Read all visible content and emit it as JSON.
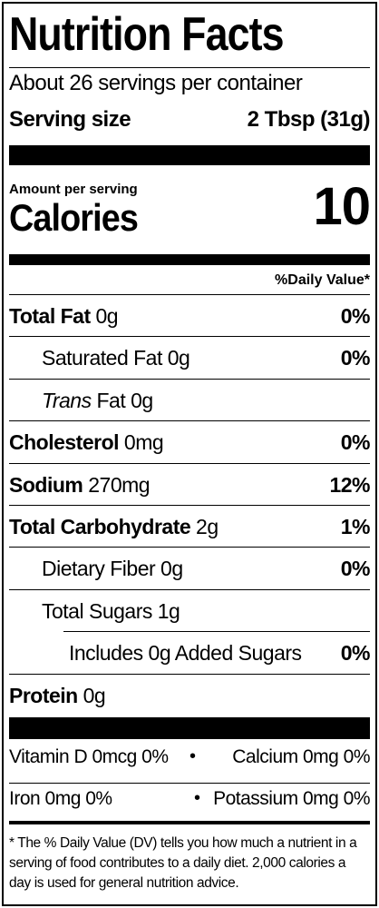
{
  "title": "Nutrition Facts",
  "servings": "About 26 servings per container",
  "serving_size": {
    "label": "Serving size",
    "value": "2 Tbsp (31g)"
  },
  "amount_per_serving": "Amount per serving",
  "calories": {
    "label": "Calories",
    "value": "10"
  },
  "daily_value_header": "%Daily Value*",
  "nutrients": [
    {
      "name": "Total Fat",
      "amount": "0g",
      "dv": "0%",
      "level": 0
    },
    {
      "name": "Saturated Fat",
      "amount": "0g",
      "dv": "0%",
      "level": 1
    },
    {
      "name_italic": "Trans",
      "name": "Fat",
      "amount": "0g",
      "level": 1
    },
    {
      "name": "Cholesterol",
      "amount": "0mg",
      "dv": "0%",
      "level": 0
    },
    {
      "name": "Sodium",
      "amount": "270mg",
      "dv": "12%",
      "level": 0
    },
    {
      "name": "Total Carbohydrate",
      "amount": "2g",
      "dv": "1%",
      "level": 0
    },
    {
      "name": "Dietary Fiber",
      "amount": "0g",
      "dv": "0%",
      "level": 1
    },
    {
      "name": "Total Sugars",
      "amount": "1g",
      "level": 1
    },
    {
      "name": "Includes 0g Added Sugars",
      "dv": "0%",
      "level": 2
    },
    {
      "name": "Protein",
      "amount": "0g",
      "level": 0
    }
  ],
  "micronutrients": [
    [
      "Vitamin D 0mcg 0%",
      "Calcium 0mg 0%"
    ],
    [
      "Iron 0mg 0%",
      "Potassium 0mg 0%"
    ]
  ],
  "footnote": "* The % Daily Value (DV) tells you how much a nutrient in a serving of food contributes to a daily diet. 2,000 calories a day is used for general nutrition advice."
}
